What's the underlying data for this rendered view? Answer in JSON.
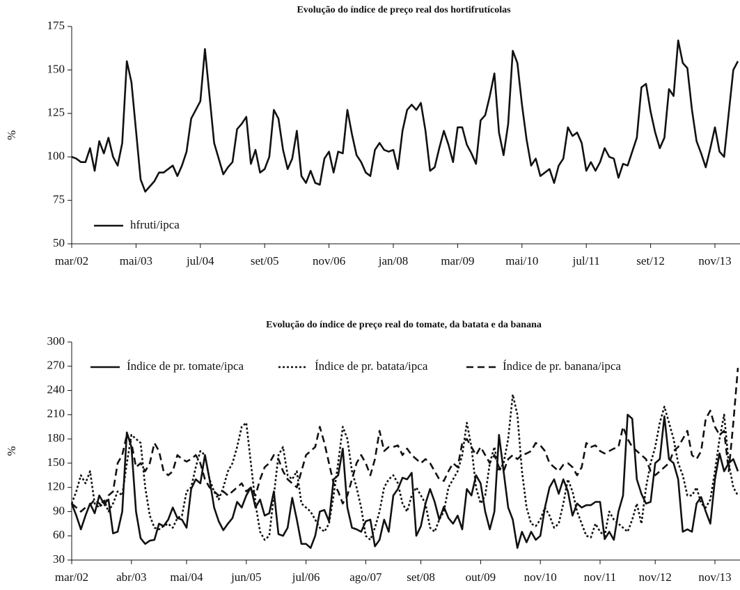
{
  "chart_data": [
    {
      "type": "line",
      "title": "Evolução do índice de preço real dos hortifrutícolas",
      "y_label": "%",
      "categories": [
        "mar/02",
        null,
        null,
        null,
        null,
        null,
        null,
        null,
        null,
        null,
        null,
        null,
        null,
        null,
        "mai/03",
        null,
        null,
        null,
        null,
        null,
        null,
        null,
        null,
        null,
        null,
        null,
        null,
        null,
        "jul/04",
        null,
        null,
        null,
        null,
        null,
        null,
        null,
        null,
        null,
        null,
        null,
        null,
        null,
        "set/05",
        null,
        null,
        null,
        null,
        null,
        null,
        null,
        null,
        null,
        null,
        null,
        null,
        null,
        "nov/06",
        null,
        null,
        null,
        null,
        null,
        null,
        null,
        null,
        null,
        null,
        null,
        null,
        null,
        "jan/08",
        null,
        null,
        null,
        null,
        null,
        null,
        null,
        null,
        null,
        null,
        null,
        null,
        null,
        "mar/09",
        null,
        null,
        null,
        null,
        null,
        null,
        null,
        null,
        null,
        null,
        null,
        null,
        null,
        "mai/10",
        null,
        null,
        null,
        null,
        null,
        null,
        null,
        null,
        null,
        null,
        null,
        null,
        null,
        "jul/11",
        null,
        null,
        null,
        null,
        null,
        null,
        null,
        null,
        null,
        null,
        null,
        null,
        null,
        "set/12",
        null,
        null,
        null,
        null,
        null,
        null,
        null,
        null,
        null,
        null,
        null,
        null,
        null,
        "nov/13",
        null,
        null,
        null,
        null,
        null
      ],
      "series": [
        {
          "name": "hfruti/ipca",
          "color": "#111111",
          "dash": "none",
          "values": [
            100,
            99,
            97,
            97,
            105,
            92,
            109,
            102,
            111,
            100,
            95,
            108,
            155,
            143,
            115,
            87,
            80,
            83,
            86,
            91,
            91,
            93,
            95,
            89,
            95,
            103,
            122,
            127,
            132,
            162,
            135,
            108,
            99,
            90,
            94,
            97,
            116,
            119,
            123,
            96,
            104,
            91,
            93,
            100,
            127,
            122,
            104,
            93,
            99,
            115,
            89,
            85,
            92,
            85,
            84,
            99,
            103,
            91,
            103,
            102,
            127,
            113,
            101,
            97,
            91,
            89,
            104,
            108,
            104,
            103,
            104,
            93,
            115,
            127,
            130,
            127,
            131,
            115,
            92,
            94,
            105,
            115,
            107,
            97,
            117,
            117,
            107,
            102,
            96,
            121,
            124,
            135,
            148,
            114,
            101,
            119,
            161,
            154,
            130,
            110,
            95,
            99,
            89,
            91,
            93,
            85,
            95,
            99,
            117,
            112,
            114,
            108,
            92,
            97,
            92,
            97,
            105,
            100,
            99,
            88,
            96,
            95,
            103,
            111,
            140,
            142,
            126,
            114,
            105,
            111,
            139,
            135,
            167,
            154,
            151,
            127,
            109,
            102,
            94,
            105,
            117,
            103,
            100,
            125,
            150,
            155
          ]
        }
      ],
      "ylim": [
        50,
        175
      ],
      "yticks": [
        50,
        75,
        100,
        125,
        150,
        175
      ],
      "legend": "lower left"
    },
    {
      "type": "line",
      "title": "Evolução do índice de preço real do tomate, da batata e da banana",
      "y_label": "%",
      "categories": [
        "mar/02",
        null,
        null,
        null,
        null,
        null,
        null,
        null,
        null,
        null,
        null,
        null,
        null,
        "abr/03",
        null,
        null,
        null,
        null,
        null,
        null,
        null,
        null,
        null,
        null,
        null,
        "mai/04",
        null,
        null,
        null,
        null,
        null,
        null,
        null,
        null,
        null,
        null,
        null,
        null,
        "jun/05",
        null,
        null,
        null,
        null,
        null,
        null,
        null,
        null,
        null,
        null,
        null,
        null,
        "jul/06",
        null,
        null,
        null,
        null,
        null,
        null,
        null,
        null,
        null,
        null,
        null,
        null,
        "ago/07",
        null,
        null,
        null,
        null,
        null,
        null,
        null,
        null,
        null,
        null,
        null,
        "set/08",
        null,
        null,
        null,
        null,
        null,
        null,
        null,
        null,
        null,
        null,
        null,
        null,
        "out/09",
        null,
        null,
        null,
        null,
        null,
        null,
        null,
        null,
        null,
        null,
        null,
        null,
        "nov/10",
        null,
        null,
        null,
        null,
        null,
        null,
        null,
        null,
        null,
        null,
        null,
        null,
        "nov/11",
        null,
        null,
        null,
        null,
        null,
        null,
        null,
        null,
        null,
        null,
        null,
        "nov/12",
        null,
        null,
        null,
        null,
        null,
        null,
        null,
        null,
        null,
        null,
        null,
        null,
        "nov/13",
        null,
        null,
        null,
        null,
        null
      ],
      "series": [
        {
          "name": "Índice de pr. tomate/ipca",
          "color": "#111111",
          "dash": "none",
          "values": [
            100,
            85,
            68,
            85,
            100,
            88,
            110,
            100,
            105,
            63,
            65,
            90,
            188,
            170,
            90,
            57,
            50,
            54,
            55,
            75,
            72,
            80,
            95,
            82,
            80,
            70,
            118,
            130,
            125,
            160,
            130,
            95,
            78,
            67,
            75,
            82,
            102,
            95,
            110,
            120,
            95,
            105,
            85,
            88,
            115,
            62,
            60,
            70,
            107,
            80,
            50,
            50,
            45,
            60,
            90,
            92,
            78,
            130,
            135,
            168,
            95,
            70,
            68,
            65,
            78,
            80,
            47,
            55,
            80,
            65,
            110,
            118,
            132,
            130,
            138,
            60,
            72,
            100,
            118,
            102,
            80,
            96,
            82,
            75,
            85,
            68,
            118,
            110,
            135,
            125,
            90,
            68,
            90,
            185,
            140,
            95,
            80,
            45,
            65,
            52,
            65,
            55,
            60,
            95,
            120,
            130,
            112,
            130,
            115,
            85,
            100,
            95,
            98,
            98,
            102,
            102,
            56,
            65,
            55,
            90,
            110,
            210,
            205,
            130,
            112,
            100,
            102,
            150,
            155,
            208,
            155,
            150,
            130,
            65,
            68,
            65,
            100,
            108,
            90,
            75,
            130,
            162,
            140,
            150,
            155,
            140
          ]
        },
        {
          "name": "Índice de pr. batata/ipca",
          "color": "#111111",
          "dash": "3,3",
          "values": [
            100,
            115,
            135,
            125,
            140,
            100,
            95,
            105,
            90,
            100,
            115,
            110,
            150,
            185,
            180,
            175,
            120,
            85,
            70,
            68,
            72,
            75,
            70,
            82,
            85,
            115,
            120,
            145,
            165,
            160,
            130,
            115,
            105,
            120,
            140,
            150,
            170,
            195,
            200,
            150,
            100,
            65,
            55,
            60,
            110,
            160,
            170,
            135,
            130,
            140,
            100,
            95,
            90,
            80,
            70,
            65,
            75,
            110,
            150,
            195,
            180,
            140,
            120,
            95,
            60,
            55,
            70,
            90,
            120,
            130,
            135,
            125,
            100,
            90,
            110,
            120,
            110,
            100,
            70,
            65,
            80,
            90,
            120,
            130,
            140,
            160,
            200,
            170,
            120,
            100,
            110,
            150,
            170,
            140,
            150,
            180,
            235,
            210,
            140,
            95,
            75,
            72,
            80,
            95,
            85,
            70,
            75,
            100,
            130,
            115,
            90,
            75,
            60,
            58,
            75,
            65,
            60,
            90,
            80,
            75,
            70,
            65,
            80,
            100,
            75,
            120,
            150,
            170,
            200,
            220,
            200,
            180,
            150,
            135,
            110,
            110,
            120,
            100,
            95,
            105,
            140,
            180,
            210,
            150,
            120,
            110
          ]
        },
        {
          "name": "Índice de pr. banana/ipca",
          "color": "#111111",
          "dash": "10,6",
          "values": [
            100,
            95,
            90,
            95,
            98,
            105,
            100,
            95,
            110,
            115,
            150,
            160,
            185,
            175,
            145,
            150,
            140,
            150,
            175,
            165,
            140,
            135,
            140,
            160,
            155,
            152,
            155,
            160,
            150,
            130,
            120,
            115,
            110,
            115,
            110,
            115,
            120,
            125,
            115,
            120,
            110,
            130,
            145,
            150,
            160,
            155,
            140,
            130,
            125,
            120,
            140,
            160,
            165,
            170,
            195,
            175,
            150,
            125,
            115,
            100,
            110,
            130,
            150,
            160,
            150,
            135,
            155,
            190,
            165,
            170,
            170,
            172,
            160,
            168,
            160,
            155,
            150,
            155,
            150,
            140,
            130,
            128,
            140,
            150,
            145,
            175,
            180,
            170,
            160,
            170,
            160,
            150,
            160,
            145,
            140,
            155,
            160,
            155,
            160,
            162,
            165,
            175,
            172,
            165,
            150,
            145,
            140,
            148,
            150,
            145,
            135,
            145,
            175,
            170,
            172,
            165,
            162,
            165,
            168,
            170,
            195,
            180,
            170,
            165,
            160,
            155,
            140,
            135,
            140,
            145,
            150,
            165,
            170,
            180,
            190,
            160,
            155,
            165,
            205,
            215,
            195,
            185,
            190,
            140,
            200,
            268
          ]
        }
      ],
      "ylim": [
        30,
        300
      ],
      "yticks": [
        30,
        60,
        90,
        120,
        150,
        180,
        210,
        240,
        270,
        300
      ],
      "legend": "upper left"
    }
  ]
}
